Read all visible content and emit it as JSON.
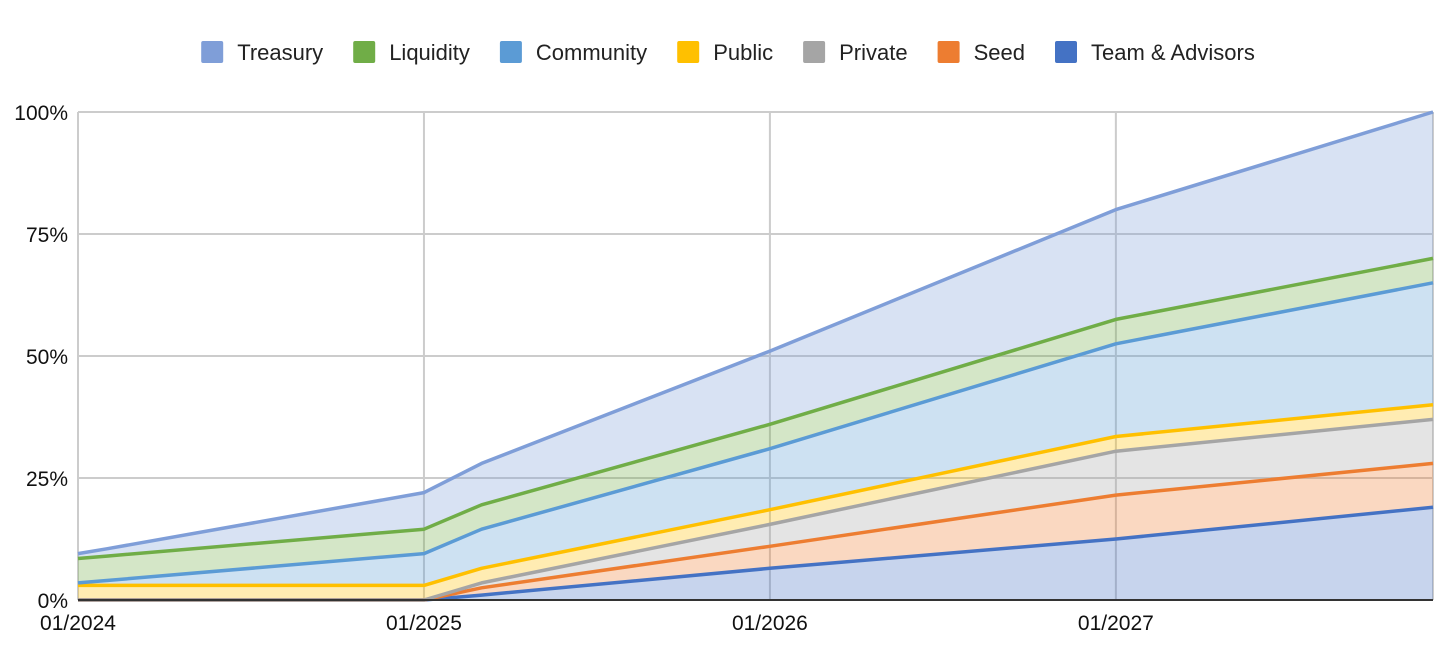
{
  "chart_data": {
    "type": "area",
    "stacked": true,
    "title": "",
    "xlabel": "",
    "ylabel": "",
    "ylim": [
      0,
      100
    ],
    "x": [
      "01/2024",
      "02/2024",
      "01/2025",
      "03/2025",
      "01/2026",
      "01/2027",
      "12/2027"
    ],
    "x_ticks": [
      "01/2024",
      "01/2025",
      "01/2026",
      "01/2027"
    ],
    "y_ticks": [
      "0%",
      "25%",
      "50%",
      "75%",
      "100%"
    ],
    "legend_position": "top",
    "grid": true,
    "series": [
      {
        "name": "Team & Advisors",
        "color": "#4472c4",
        "values": [
          0,
          0,
          0,
          1,
          6.5,
          12.5,
          19
        ]
      },
      {
        "name": "Seed",
        "color": "#ed7d31",
        "values": [
          0,
          0,
          0,
          1.5,
          4.5,
          9,
          9
        ]
      },
      {
        "name": "Private",
        "color": "#a5a5a5",
        "values": [
          0,
          0,
          0,
          1,
          4.5,
          9,
          9
        ]
      },
      {
        "name": "Public",
        "color": "#ffc000",
        "values": [
          3,
          3,
          3,
          3,
          3,
          3,
          3
        ]
      },
      {
        "name": "Community",
        "color": "#5b9bd5",
        "values": [
          0.5,
          1,
          6.5,
          8,
          12.5,
          19,
          25
        ]
      },
      {
        "name": "Liquidity",
        "color": "#70ad47",
        "values": [
          5,
          5,
          5,
          5,
          5,
          5,
          5
        ]
      },
      {
        "name": "Treasury",
        "color": "#7f9ed8",
        "values": [
          1,
          1.5,
          7.5,
          8.5,
          15,
          22.5,
          30
        ]
      }
    ],
    "legend_order": [
      "Treasury",
      "Liquidity",
      "Community",
      "Public",
      "Private",
      "Seed",
      "Team & Advisors"
    ]
  }
}
